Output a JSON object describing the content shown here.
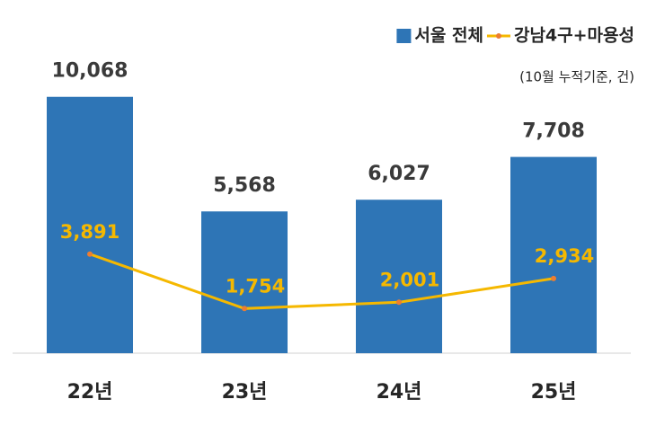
{
  "chart_data": {
    "type": "bar",
    "subtitle": "(10월 누적기준, 건)",
    "categories": [
      "22년",
      "23년",
      "24년",
      "25년"
    ],
    "series": [
      {
        "name": "서울 전체",
        "type": "bar",
        "color": "#2e75b6",
        "values": [
          10068,
          5568,
          6027,
          7708
        ],
        "value_labels": [
          "10,068",
          "5,568",
          "6,027",
          "7,708"
        ]
      },
      {
        "name": "강남4구+마용성",
        "type": "line",
        "color": "#f5b800",
        "marker_color": "#ed7d31",
        "values": [
          3891,
          1754,
          2001,
          2934
        ],
        "value_labels": [
          "3,891",
          "1,754",
          "2,001",
          "2,934"
        ]
      }
    ],
    "ylim": [
      0,
      12000
    ],
    "legend": "top-right"
  }
}
